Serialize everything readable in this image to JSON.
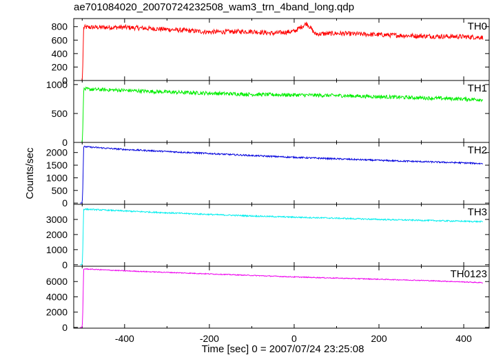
{
  "chart_data": {
    "type": "line",
    "title": "ae701084020_20070724232508_wam3_trn_4band_long.qdp",
    "xlabel": "Time [sec] 0 = 2007/07/24 23:25:08",
    "ylabel": "Counts/sec",
    "xlim": [
      -520,
      460
    ],
    "xticks": [
      -400,
      -200,
      0,
      200,
      400
    ],
    "grid": false,
    "panels": [
      {
        "name": "TH0",
        "color": "#ff0000",
        "ylim": [
          0,
          920
        ],
        "yticks": [
          0,
          200,
          400,
          600,
          800
        ],
        "series": {
          "x": [
            -505,
            -500,
            -498,
            -497,
            -495,
            -400,
            -300,
            -200,
            -100,
            -50,
            0,
            30,
            50,
            100,
            200,
            300,
            400,
            445
          ],
          "y": [
            0,
            0,
            320,
            780,
            790,
            790,
            760,
            720,
            730,
            700,
            730,
            850,
            690,
            700,
            680,
            660,
            650,
            640
          ]
        },
        "noise": 35
      },
      {
        "name": "TH1",
        "color": "#00ee00",
        "ylim": [
          0,
          1070
        ],
        "yticks": [
          0,
          500,
          1000
        ],
        "series": {
          "x": [
            -505,
            -500,
            -498,
            -497,
            -495,
            -400,
            -300,
            -200,
            -100,
            0,
            100,
            200,
            300,
            400,
            445
          ],
          "y": [
            0,
            0,
            350,
            900,
            920,
            900,
            870,
            850,
            830,
            820,
            810,
            790,
            770,
            750,
            740
          ]
        },
        "noise": 32
      },
      {
        "name": "TH2",
        "color": "#0000dd",
        "ylim": [
          -50,
          2400
        ],
        "yticks": [
          0,
          500,
          1000,
          1500,
          2000
        ],
        "series": {
          "x": [
            -505,
            -500,
            -498,
            -497,
            -495,
            -400,
            -300,
            -200,
            -100,
            0,
            100,
            200,
            300,
            400,
            445
          ],
          "y": [
            0,
            0,
            850,
            2200,
            2230,
            2120,
            2040,
            1960,
            1880,
            1810,
            1750,
            1690,
            1640,
            1590,
            1560
          ]
        },
        "noise": 30
      },
      {
        "name": "TH3",
        "color": "#00eeee",
        "ylim": [
          -100,
          4000
        ],
        "yticks": [
          0,
          1000,
          2000,
          3000
        ],
        "series": {
          "x": [
            -505,
            -500,
            -498,
            -497,
            -495,
            -400,
            -300,
            -200,
            -100,
            0,
            100,
            200,
            300,
            400,
            445
          ],
          "y": [
            0,
            0,
            1500,
            3650,
            3680,
            3560,
            3440,
            3330,
            3230,
            3150,
            3080,
            3000,
            2940,
            2880,
            2850
          ]
        },
        "noise": 45
      },
      {
        "name": "TH0123",
        "color": "#ee00ee",
        "ylim": [
          -100,
          8000
        ],
        "yticks": [
          0,
          2000,
          4000,
          6000
        ],
        "series": {
          "x": [
            -505,
            -500,
            -498,
            -497,
            -495,
            -400,
            -300,
            -200,
            -100,
            0,
            100,
            200,
            300,
            400,
            445
          ],
          "y": [
            0,
            0,
            3000,
            7600,
            7650,
            7400,
            7200,
            7000,
            6800,
            6600,
            6450,
            6300,
            6150,
            5950,
            5850
          ]
        },
        "noise": 60
      }
    ]
  }
}
